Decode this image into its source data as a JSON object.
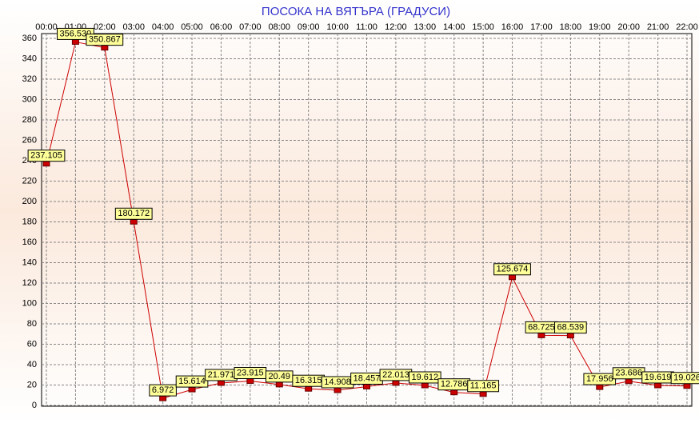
{
  "chart_data": {
    "type": "line",
    "title": "ПОСОКА НА ВЯТЪРА    (ГРАДУСИ)",
    "categories": [
      "00:00",
      "01:00",
      "02:00",
      "03:00",
      "04:00",
      "05:00",
      "06:00",
      "07:00",
      "08:00",
      "09:00",
      "10:00",
      "11:00",
      "12:00",
      "13:00",
      "14:00",
      "15:00",
      "16:00",
      "17:00",
      "18:00",
      "19:00",
      "20:00",
      "21:00",
      "22:00"
    ],
    "values": [
      237.105,
      356.53,
      350.867,
      180.172,
      6.972,
      15.614,
      21.971,
      23.915,
      20.49,
      16.315,
      14.908,
      18.457,
      22.013,
      19.612,
      12.786,
      11.165,
      125.674,
      68.725,
      68.539,
      17.956,
      23.686,
      19.619,
      19.026
    ],
    "value_labels": [
      "237.105",
      "356.530",
      "350.867",
      "180.172",
      "6.972",
      "15.614",
      "21.971",
      "23.915",
      "20.49",
      "16.315",
      "14.908",
      "18.457",
      "22.013",
      "19.612",
      "12.786",
      "11.165",
      "125.674",
      "68.725",
      "68.539",
      "17.956",
      "23.686",
      "19.619",
      "19.026"
    ],
    "color": "#cc0000",
    "ylim": [
      0,
      360
    ],
    "yticks": [
      0,
      20,
      40,
      60,
      80,
      100,
      120,
      140,
      160,
      180,
      200,
      220,
      240,
      260,
      280,
      300,
      320,
      340,
      360
    ],
    "grid": true
  }
}
